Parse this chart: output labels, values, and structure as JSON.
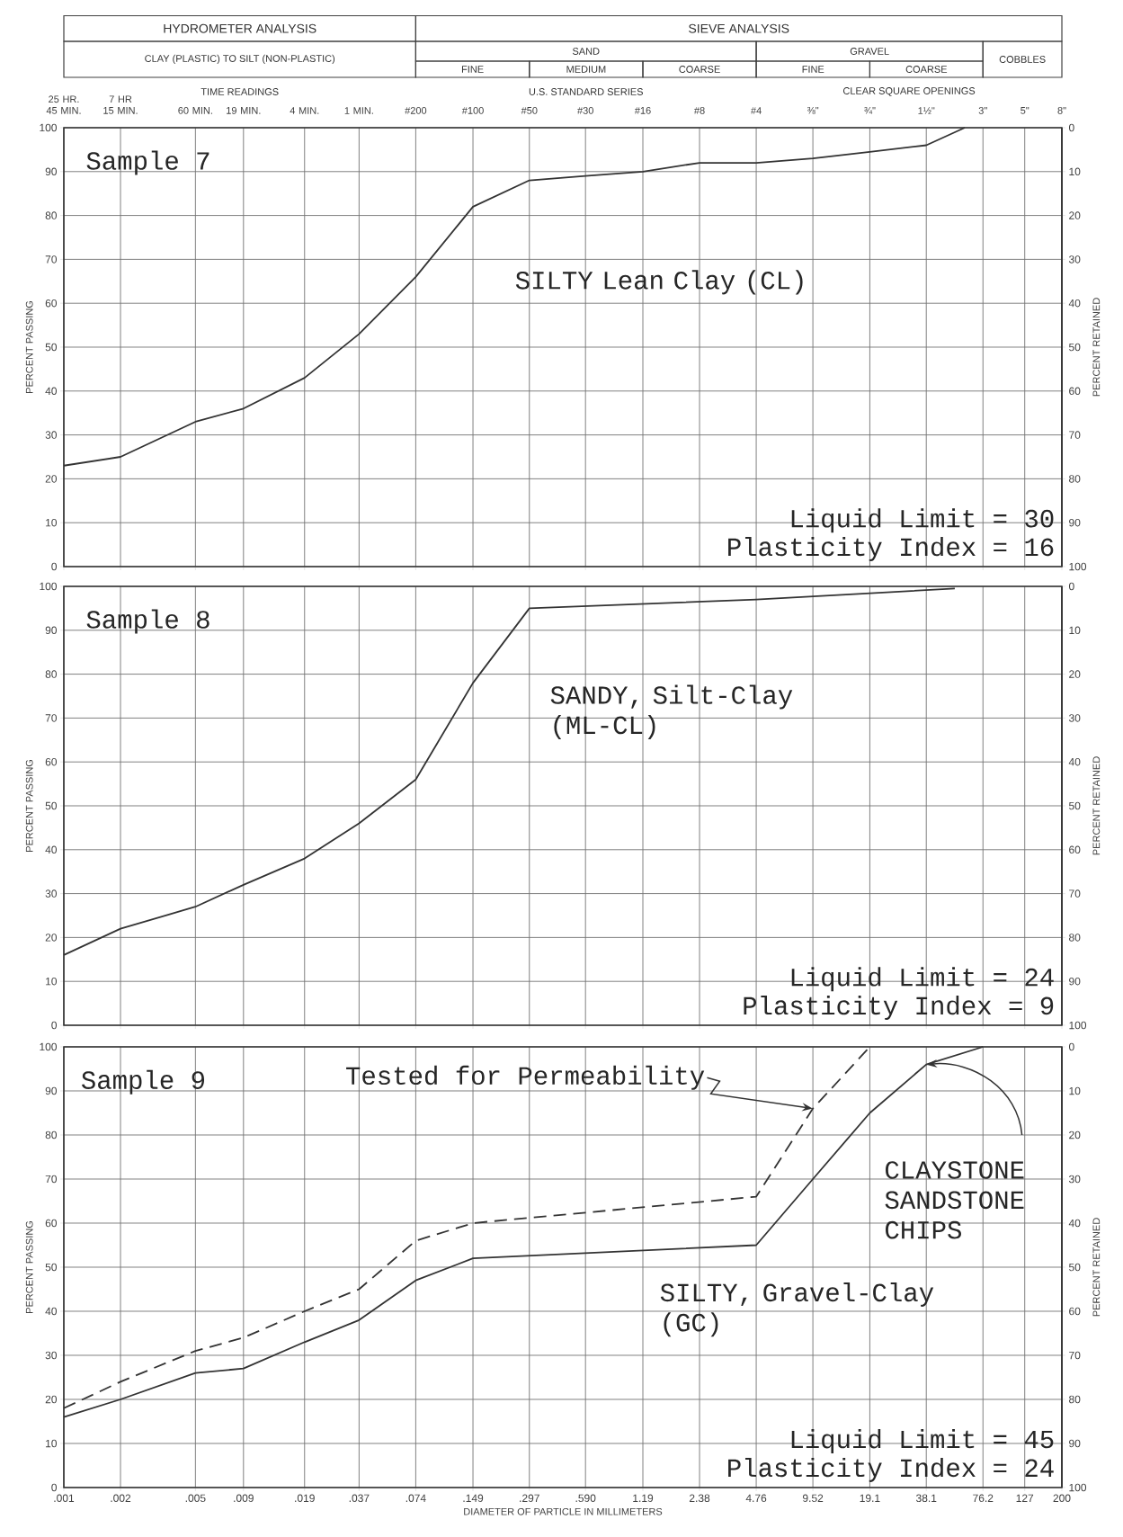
{
  "chart_data": [
    {
      "type": "line",
      "log": "x",
      "grid": true,
      "tick_labels": "y",
      "ylabel": "PERCENT PASSING",
      "y2label": "PERCENT RETAINED",
      "annotations": [
        "Sample 7",
        "SILTY Lean Clay (CL)",
        "Liquid Limit = 30",
        "Plasticity Index = 16",
        "HYDROMETER ANALYSIS",
        "SIEVE ANALYSIS",
        "CLAY (PLASTIC) TO SILT (NON-PLASTIC)",
        "SAND",
        "GRAVEL",
        "COBBLES",
        "FINE",
        "MEDIUM",
        "COARSE",
        "FINE",
        "COARSE",
        "TIME READINGS",
        "U.S. STANDARD SERIES",
        "CLEAR SQUARE OPENINGS",
        "25 HR. 45 MIN.",
        "7 HR 15 MIN.",
        "60 MIN.",
        "19 MIN.",
        "4 MIN.",
        "1 MIN.",
        "#200",
        "#100",
        "#50",
        "#30",
        "#16",
        "#8",
        "#4",
        "⅜\"",
        "¾\"",
        "1½\"",
        "3\"",
        "5\"",
        "8\""
      ],
      "xlim": [
        0.001,
        200
      ],
      "xticks": [
        {
          "value": 0.001,
          "label": null
        },
        {
          "value": 0.002,
          "label": null
        },
        {
          "value": 0.005,
          "label": null
        },
        {
          "value": 0.009,
          "label": null
        },
        {
          "value": 0.019,
          "label": null
        },
        {
          "value": 0.037,
          "label": null
        },
        {
          "value": 0.074,
          "label": null
        },
        {
          "value": 0.149,
          "label": null
        },
        {
          "value": 0.297,
          "label": null
        },
        {
          "value": 0.59,
          "label": null
        },
        {
          "value": 1.19,
          "label": null
        },
        {
          "value": 2.38,
          "label": null
        },
        {
          "value": 4.76,
          "label": null
        },
        {
          "value": 9.52,
          "label": null
        },
        {
          "value": 19.1,
          "label": null
        },
        {
          "value": 38.1,
          "label": null
        },
        {
          "value": 76.2,
          "label": null
        },
        {
          "value": 127,
          "label": null
        },
        {
          "value": 200,
          "label": null
        }
      ],
      "ylim": [
        0,
        100
      ],
      "yticks": [
        0,
        10,
        20,
        30,
        40,
        50,
        60,
        70,
        80,
        90,
        100
      ],
      "y2lim": [
        100,
        0
      ],
      "y2ticks": [
        0,
        10,
        20,
        30,
        40,
        50,
        60,
        70,
        80,
        90,
        100
      ],
      "series": [
        {
          "color": "#333333",
          "x": [
            0.001,
            0.002,
            0.005,
            0.009,
            0.019,
            0.037,
            0.074,
            0.149,
            0.297,
            0.59,
            1.19,
            2.38,
            4.76,
            9.52,
            19.1,
            38.1,
            61
          ],
          "values": [
            23,
            25,
            33,
            36,
            43,
            53,
            66,
            82,
            88,
            89,
            90,
            92,
            92,
            93,
            94.5,
            96,
            100
          ]
        }
      ]
    },
    {
      "type": "line",
      "log": "x",
      "grid": true,
      "tick_labels": "y",
      "ylabel": "PERCENT PASSING",
      "y2label": "PERCENT RETAINED",
      "annotations": [
        "Sample 8",
        "SANDY, Silt-Clay (ML-CL)",
        "Liquid Limit = 24",
        "Plasticity Index = 9"
      ],
      "xlim": [
        0.001,
        200
      ],
      "xticks": [
        {
          "value": 0.001,
          "label": null
        },
        {
          "value": 0.002,
          "label": null
        },
        {
          "value": 0.005,
          "label": null
        },
        {
          "value": 0.009,
          "label": null
        },
        {
          "value": 0.019,
          "label": null
        },
        {
          "value": 0.037,
          "label": null
        },
        {
          "value": 0.074,
          "label": null
        },
        {
          "value": 0.149,
          "label": null
        },
        {
          "value": 0.297,
          "label": null
        },
        {
          "value": 0.59,
          "label": null
        },
        {
          "value": 1.19,
          "label": null
        },
        {
          "value": 2.38,
          "label": null
        },
        {
          "value": 4.76,
          "label": null
        },
        {
          "value": 9.52,
          "label": null
        },
        {
          "value": 19.1,
          "label": null
        },
        {
          "value": 38.1,
          "label": null
        },
        {
          "value": 76.2,
          "label": null
        },
        {
          "value": 127,
          "label": null
        },
        {
          "value": 200,
          "label": null
        }
      ],
      "ylim": [
        0,
        100
      ],
      "yticks": [
        0,
        10,
        20,
        30,
        40,
        50,
        60,
        70,
        80,
        90,
        100
      ],
      "y2lim": [
        100,
        0
      ],
      "y2ticks": [
        0,
        10,
        20,
        30,
        40,
        50,
        60,
        70,
        80,
        90,
        100
      ],
      "series": [
        {
          "color": "#333333",
          "x": [
            0.001,
            0.002,
            0.005,
            0.009,
            0.019,
            0.037,
            0.074,
            0.149,
            0.297,
            4.76,
            54
          ],
          "values": [
            16,
            22,
            27,
            32,
            38,
            46,
            56,
            78,
            95,
            97,
            99.5
          ]
        }
      ]
    },
    {
      "type": "line",
      "log": "x",
      "grid": true,
      "xlabel": "DIAMETER OF PARTICLE IN MILLIMETERS",
      "ylabel": "PERCENT PASSING",
      "y2label": "PERCENT RETAINED",
      "annotations": [
        "Sample 9",
        {
          "text": "Tested for Permeability",
          "x": 9.52,
          "y": 86
        },
        "SILTY, Gravel-Clay (GC)",
        {
          "text": "CLAYSTONE SANDSTONE CHIPS",
          "x": 38.1,
          "y": 96
        },
        "Liquid Limit = 45",
        "Plasticity Index = 24"
      ],
      "xlim": [
        0.001,
        200
      ],
      "xticks": [
        {
          "value": 0.001,
          "label": ".001"
        },
        {
          "value": 0.002,
          "label": ".002"
        },
        {
          "value": 0.005,
          "label": ".005"
        },
        {
          "value": 0.009,
          "label": ".009"
        },
        {
          "value": 0.019,
          "label": ".019"
        },
        {
          "value": 0.037,
          "label": ".037"
        },
        {
          "value": 0.074,
          "label": ".074"
        },
        {
          "value": 0.149,
          "label": ".149"
        },
        {
          "value": 0.297,
          "label": ".297"
        },
        {
          "value": 0.59,
          "label": ".590"
        },
        {
          "value": 1.19,
          "label": "1.19"
        },
        {
          "value": 2.38,
          "label": "2.38"
        },
        {
          "value": 4.76,
          "label": "4.76"
        },
        {
          "value": 9.52,
          "label": "9.52"
        },
        {
          "value": 19.1,
          "label": "19.1"
        },
        {
          "value": 38.1,
          "label": "38.1"
        },
        {
          "value": 76.2,
          "label": "76.2"
        },
        {
          "value": 127,
          "label": "127"
        },
        {
          "value": 200,
          "label": "200"
        }
      ],
      "ylim": [
        0,
        100
      ],
      "yticks": [
        0,
        10,
        20,
        30,
        40,
        50,
        60,
        70,
        80,
        90,
        100
      ],
      "y2lim": [
        100,
        0
      ],
      "y2ticks": [
        0,
        10,
        20,
        30,
        40,
        50,
        60,
        70,
        80,
        90,
        100
      ],
      "series": [
        {
          "color": "#333333",
          "line_style": "solid",
          "x": [
            0.001,
            0.002,
            0.005,
            0.009,
            0.019,
            0.037,
            0.074,
            0.149,
            4.76,
            9.52,
            19.1,
            38.1,
            76.2
          ],
          "values": [
            16,
            20,
            26,
            27,
            33,
            38,
            47,
            52,
            55,
            70,
            85,
            96,
            100
          ]
        },
        {
          "color": "#333333",
          "line_style": "dashed",
          "x": [
            0.001,
            0.002,
            0.005,
            0.009,
            0.019,
            0.037,
            0.074,
            0.149,
            4.76,
            9.52,
            19.1
          ],
          "values": [
            18,
            24,
            31,
            34,
            40,
            45,
            56,
            60,
            66,
            86,
            100
          ]
        }
      ]
    }
  ]
}
